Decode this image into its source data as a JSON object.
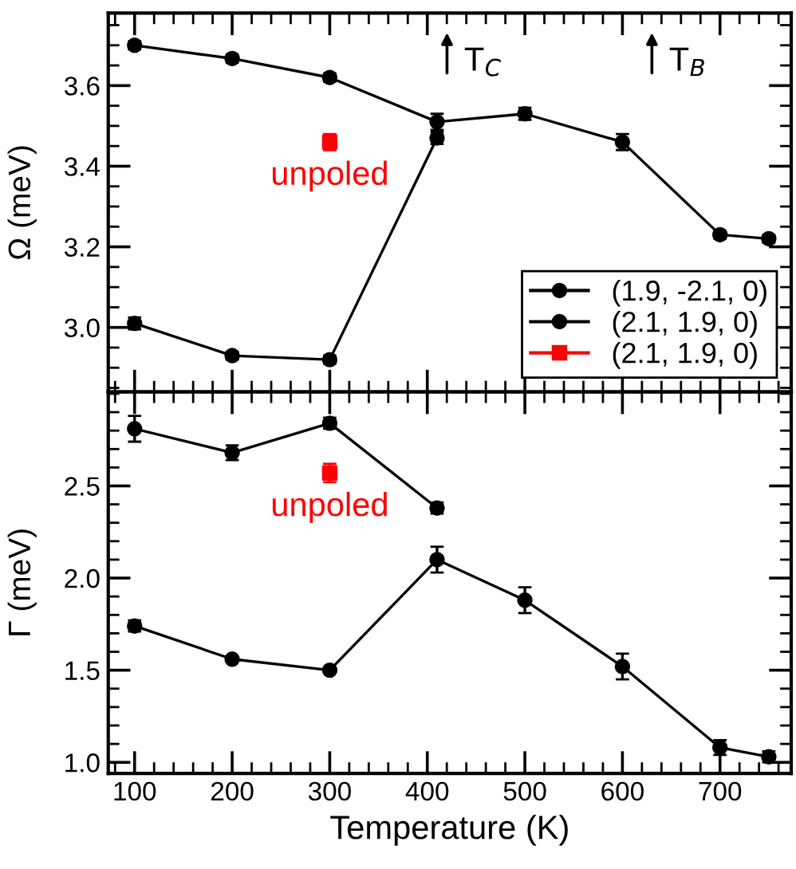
{
  "chart_data": [
    {
      "type": "line",
      "ylabel": "Ω (meV)",
      "xlim": [
        73,
        773
      ],
      "xticks": [
        100,
        200,
        300,
        400,
        500,
        600,
        700
      ],
      "ylim": [
        2.84,
        3.78
      ],
      "yticks": [
        {
          "value": 3.0,
          "label": "3.0"
        },
        3.2,
        3.4,
        3.6
      ],
      "tick_labels": "y",
      "legend": "bottom right",
      "grid": false,
      "marker": "circle",
      "series": [
        {
          "name": "(1.9, -2.1, 0)",
          "color": "#000000",
          "x": [
            100,
            200,
            300,
            410
          ],
          "values": [
            3.01,
            2.93,
            2.92,
            3.47
          ],
          "errors": [
            0.015,
            0.01,
            0.01,
            0.015
          ]
        },
        {
          "name": "(2.1, 1.9, 0)",
          "color": "#000000",
          "x": [
            100,
            200,
            300,
            410,
            500,
            600,
            700,
            750
          ],
          "values": [
            3.7,
            3.667,
            3.62,
            3.51,
            3.53,
            3.46,
            3.23,
            3.22
          ],
          "errors": [
            0.01,
            0.01,
            0.01,
            0.02,
            0.015,
            0.02,
            0.01,
            0.01
          ]
        },
        {
          "name": "(2.1, 1.9, 0)",
          "type": "scatter",
          "marker": "square",
          "color": "#ff0000",
          "x": [
            300
          ],
          "values": [
            3.46
          ],
          "errors": [
            0.02
          ]
        }
      ],
      "annotations": [
        "unpoled",
        "T$_{C}$",
        "T$_{B}$"
      ]
    },
    {
      "type": "line",
      "xlabel": "Temperature (K)",
      "ylabel": "Γ (meV)",
      "xlim": [
        73,
        773
      ],
      "xticks": [
        100,
        200,
        300,
        400,
        500,
        600,
        700
      ],
      "ylim": [
        0.94,
        3.01
      ],
      "yticks": [
        {
          "value": 1.0,
          "label": "1.0"
        },
        1.5,
        {
          "value": 2.0,
          "label": "2.0"
        },
        2.5
      ],
      "grid": false,
      "marker": "circle",
      "series": [
        {
          "color": "#000000",
          "x": [
            100,
            200,
            300,
            410
          ],
          "values": [
            2.81,
            2.68,
            2.84,
            2.38
          ],
          "errors": [
            0.07,
            0.04,
            0.03,
            0.03
          ]
        },
        {
          "color": "#000000",
          "x": [
            100,
            200,
            300,
            410,
            500,
            600,
            700,
            750
          ],
          "values": [
            1.74,
            1.56,
            1.5,
            2.1,
            1.88,
            1.52,
            1.08,
            1.03
          ],
          "errors": [
            0.03,
            0.01,
            0.01,
            0.07,
            0.07,
            0.07,
            0.04,
            0.03
          ]
        },
        {
          "type": "scatter",
          "marker": "square",
          "color": "#ff0000",
          "x": [
            300
          ],
          "values": [
            2.57
          ],
          "errors": [
            0.05
          ]
        }
      ],
      "annotations": [
        "unpoled"
      ]
    }
  ]
}
